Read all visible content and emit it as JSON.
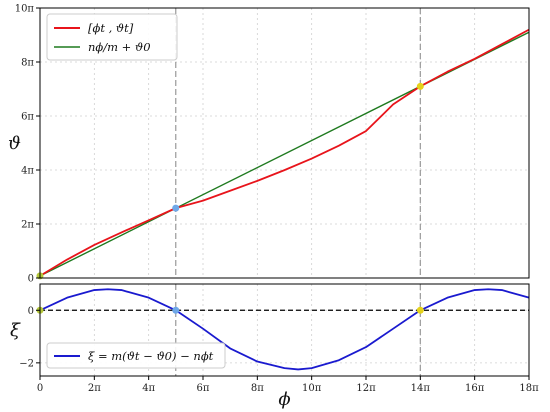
{
  "colors": {
    "line_primary": "#e8141b",
    "line_linear": "#1f7a1f",
    "line_xi": "#1a1acf",
    "zero_line": "#000000",
    "vline": "#999999",
    "grid": "#d0d0d0",
    "marker_blue": "#6fa8e8",
    "marker_yellow": "#e5d21a",
    "marker_green": "#b5c83a"
  },
  "chart_data": [
    {
      "type": "line",
      "panel": "top",
      "ylabel": "ϑ",
      "xlim": [
        0,
        56.549
      ],
      "ylim": [
        0,
        31.416
      ],
      "grid": true,
      "legend": "top-left",
      "yticks": [
        0,
        6.283,
        12.566,
        18.85,
        25.133,
        31.416
      ],
      "ytick_labels": [
        "0",
        "2π",
        "4π",
        "6π",
        "8π",
        "10π"
      ],
      "vlines": [
        15.7,
        43.98
      ],
      "series": [
        {
          "name": "[ϕt , ϑt]",
          "color": "#e8141b",
          "x": [
            0,
            3.14,
            6.28,
            9.42,
            12.57,
            15.7,
            18.85,
            21.99,
            25.13,
            28.27,
            31.42,
            34.56,
            37.7,
            40.84,
            43.98,
            47.12,
            50.27,
            53.41,
            56.55
          ],
          "y": [
            0.25,
            2.15,
            3.85,
            5.3,
            6.71,
            8.13,
            9.0,
            10.15,
            11.3,
            12.55,
            13.9,
            15.4,
            17.1,
            20.2,
            22.3,
            24.0,
            25.5,
            27.2,
            28.9
          ]
        },
        {
          "name": "nϕ/m + ϑ0",
          "color": "#1f7a1f",
          "x": [
            0,
            56.55
          ],
          "y": [
            0.25,
            28.6
          ]
        }
      ],
      "markers": [
        {
          "x": 0,
          "y": 0.25,
          "color": "#b5c83a"
        },
        {
          "x": 15.7,
          "y": 8.13,
          "color": "#6fa8e8"
        },
        {
          "x": 43.98,
          "y": 22.3,
          "color": "#e5d21a"
        }
      ]
    },
    {
      "type": "line",
      "panel": "bottom",
      "xlabel": "ϕ",
      "ylabel": "ξ",
      "xlim": [
        0,
        56.549
      ],
      "ylim": [
        -2.5,
        1.0
      ],
      "grid": true,
      "legend": "bottom-left",
      "xticks": [
        0,
        6.283,
        12.566,
        18.85,
        25.133,
        31.416,
        37.699,
        43.982,
        50.265,
        56.549
      ],
      "xtick_labels": [
        "0",
        "2π",
        "4π",
        "6π",
        "8π",
        "10π",
        "12π",
        "14π",
        "16π",
        "18π"
      ],
      "yticks": [
        -2,
        0
      ],
      "ytick_labels": [
        "−2",
        "0"
      ],
      "hline": 0,
      "vlines": [
        15.7,
        43.98
      ],
      "series": [
        {
          "name": "ξ = m(ϑt − ϑ0) − nϕt",
          "color": "#1a1acf",
          "x": [
            0,
            3.14,
            6.28,
            7.85,
            9.42,
            12.57,
            15.7,
            18.85,
            21.99,
            25.13,
            28.27,
            29.85,
            31.42,
            34.56,
            37.7,
            40.84,
            43.98,
            47.12,
            50.27,
            51.84,
            53.41,
            56.55
          ],
          "y": [
            0,
            0.48,
            0.77,
            0.8,
            0.77,
            0.48,
            0,
            -0.7,
            -1.45,
            -1.95,
            -2.2,
            -2.25,
            -2.2,
            -1.9,
            -1.4,
            -0.7,
            0,
            0.48,
            0.77,
            0.8,
            0.77,
            0.48
          ]
        }
      ],
      "markers": [
        {
          "x": 0,
          "y": 0,
          "color": "#b5c83a"
        },
        {
          "x": 15.7,
          "y": 0,
          "color": "#6fa8e8"
        },
        {
          "x": 43.98,
          "y": 0,
          "color": "#e5d21a"
        }
      ]
    }
  ],
  "legend_top": [
    "[ϕt , ϑt]",
    "nϕ/m + ϑ0"
  ],
  "legend_bottom": [
    "ξ = m(ϑt − ϑ0) − nϕt"
  ]
}
